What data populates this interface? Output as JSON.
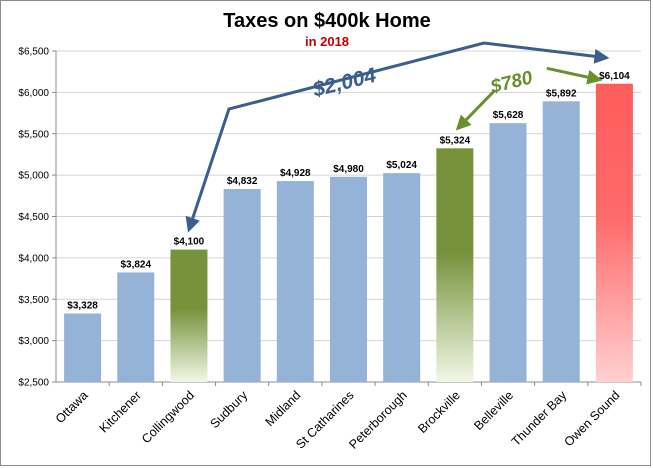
{
  "chart_data": {
    "type": "bar",
    "title": "Taxes on $400k Home",
    "subtitle": "in 2018",
    "categories": [
      "Ottawa",
      "Kitchener",
      "Collingwood",
      "Sudbury",
      "Midland",
      "St Catharines",
      "Peterborough",
      "Brockville",
      "Belleville",
      "Thunder Bay",
      "Owen Sound"
    ],
    "values": [
      3328,
      3824,
      4100,
      4832,
      4928,
      4980,
      5024,
      5324,
      5628,
      5892,
      6104
    ],
    "value_labels": [
      "$3,328",
      "$3,824",
      "$4,100",
      "$4,832",
      "$4,928",
      "$4,980",
      "$5,024",
      "$5,324",
      "$5,628",
      "$5,892",
      "$6,104"
    ],
    "bar_styles": [
      "blue",
      "blue",
      "green",
      "blue",
      "blue",
      "blue",
      "blue",
      "green",
      "blue",
      "blue",
      "red"
    ],
    "ylim": [
      2500,
      6500
    ],
    "yticks": [
      2500,
      3000,
      3500,
      4000,
      4500,
      5000,
      5500,
      6000,
      6500
    ],
    "ytick_labels": [
      "$2,500",
      "$3,000",
      "$3,500",
      "$4,000",
      "$4,500",
      "$5,000",
      "$5,500",
      "$6,000",
      "$6,500"
    ],
    "grid": true,
    "xlabel": "",
    "ylabel": "",
    "annotations": [
      {
        "text": "$2,004",
        "from": "Collingwood",
        "to": "Owen Sound",
        "color": "#3b5e8c"
      },
      {
        "text": "$780",
        "from": "Brockville",
        "to": "Owen Sound",
        "color": "#6a8f2e"
      }
    ]
  },
  "colors": {
    "blue": "#95b3d7",
    "green_top": "#76933c",
    "green_bottom": "#f2f7e6",
    "red_top": "#ff5b5b",
    "red_bottom": "#ffd0d0",
    "grid": "#d4d4d4",
    "arrow_blue": "#3b5e8c",
    "arrow_green": "#6a8f2e"
  }
}
